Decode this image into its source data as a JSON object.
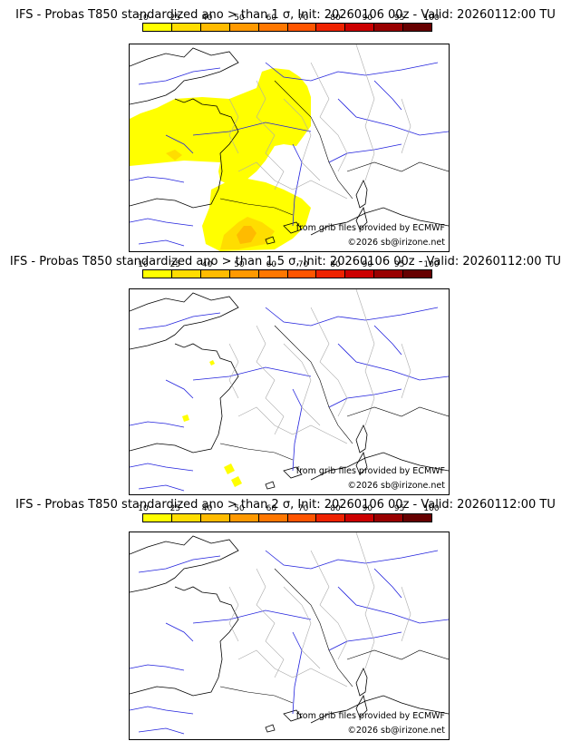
{
  "scale": {
    "levels": [
      "10",
      "25",
      "40",
      "50",
      "60",
      "70",
      "80",
      "90",
      "95",
      "100"
    ],
    "colors": [
      "#ffff00",
      "#ffdd00",
      "#ffbb00",
      "#ff9900",
      "#ff7700",
      "#ff5500",
      "#ee2200",
      "#cc0000",
      "#990000",
      "#660000"
    ]
  },
  "panels": [
    {
      "title": "IFS - Probas T850  standardized ano > than 1 σ, Init: 20260106 00z - Valid: 20260112:00 TU",
      "source": "from grib files provided by ECMWF",
      "copyright": "©2026 sb@irizone.net"
    },
    {
      "title": "IFS - Probas T850  standardized ano > than 1.5 σ, Init: 20260106 00z - Valid: 20260112:00 TU",
      "source": "from grib files provided by ECMWF",
      "copyright": "©2026 sb@irizone.net"
    },
    {
      "title": "IFS - Probas T850  standardized ano > than 2 σ, Init: 20260106 00z - Valid: 20260112:00 TU",
      "source": "from grib files provided by ECMWF",
      "copyright": "©2026 sb@irizone.net"
    }
  ]
}
